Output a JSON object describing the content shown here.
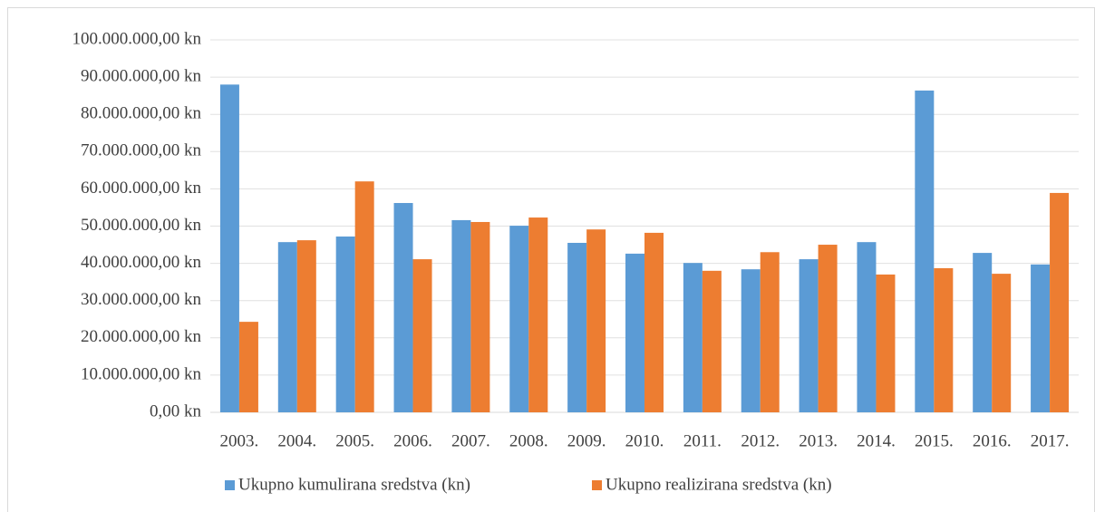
{
  "chart_data": {
    "type": "bar",
    "categories": [
      "2003.",
      "2004.",
      "2005.",
      "2006.",
      "2007.",
      "2008.",
      "2009.",
      "2010.",
      "2011.",
      "2012.",
      "2013.",
      "2014.",
      "2015.",
      "2016.",
      "2017."
    ],
    "series": [
      {
        "name": "Ukupno kumulirana sredstva (kn)",
        "color": "#5b9bd5",
        "values": [
          88000000,
          45700000,
          47200000,
          56200000,
          51600000,
          50100000,
          45500000,
          42600000,
          40100000,
          38400000,
          41100000,
          45700000,
          86400000,
          42800000,
          39700000
        ]
      },
      {
        "name": "Ukupno realizirana sredstva (kn)",
        "color": "#ed7d31",
        "values": [
          24300000,
          46200000,
          62000000,
          41100000,
          51100000,
          52300000,
          49100000,
          48200000,
          38000000,
          43000000,
          45000000,
          37000000,
          38700000,
          37200000,
          58900000
        ]
      }
    ],
    "ylim": [
      0,
      100000000
    ],
    "yticks": [
      {
        "value": 0,
        "label": "0,00 kn"
      },
      {
        "value": 10000000,
        "label": "10.000.000,00 kn"
      },
      {
        "value": 20000000,
        "label": "20.000.000,00 kn"
      },
      {
        "value": 30000000,
        "label": "30.000.000,00 kn"
      },
      {
        "value": 40000000,
        "label": "40.000.000,00 kn"
      },
      {
        "value": 50000000,
        "label": "50.000.000,00 kn"
      },
      {
        "value": 60000000,
        "label": "60.000.000,00 kn"
      },
      {
        "value": 70000000,
        "label": "70.000.000,00 kn"
      },
      {
        "value": 80000000,
        "label": "80.000.000,00 kn"
      },
      {
        "value": 90000000,
        "label": "90.000.000,00 kn"
      },
      {
        "value": 100000000,
        "label": "100.000.000,00 kn"
      }
    ],
    "grid": true,
    "legend": "bottom"
  }
}
